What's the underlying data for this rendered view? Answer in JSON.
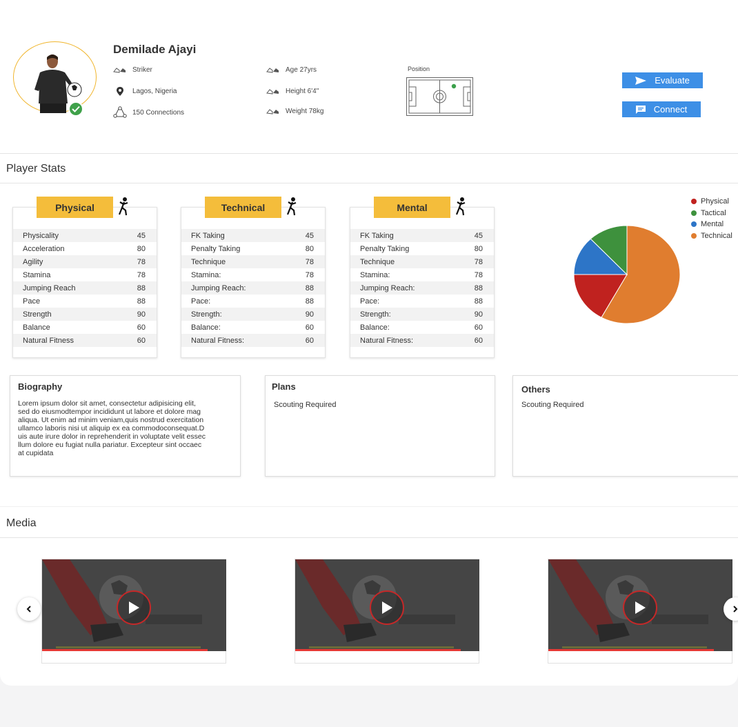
{
  "profile": {
    "name": "Demilade Ajayi",
    "role": "Striker",
    "location": "Lagos, Nigeria",
    "connections": "150 Connections",
    "age": "Age 27yrs",
    "height": "Height 6'4\"",
    "weight": "Weight 78kg",
    "position_label": "Position"
  },
  "actions": {
    "evaluate": "Evaluate",
    "connect": "Connect"
  },
  "player_stats": {
    "title": "Player Stats",
    "cards": [
      {
        "title": "Physical",
        "rows": [
          {
            "label": "Physicality",
            "value": "45"
          },
          {
            "label": "Acceleration",
            "value": "80"
          },
          {
            "label": "Agility",
            "value": "78"
          },
          {
            "label": "Stamina",
            "value": "78"
          },
          {
            "label": "Jumping Reach",
            "value": "88"
          },
          {
            "label": "Pace",
            "value": "88"
          },
          {
            "label": "Strength",
            "value": "90"
          },
          {
            "label": "Balance",
            "value": "60"
          },
          {
            "label": "Natural Fitness",
            "value": "60"
          }
        ]
      },
      {
        "title": "Technical",
        "rows": [
          {
            "label": "FK Taking",
            "value": "45"
          },
          {
            "label": "Penalty Taking",
            "value": "80"
          },
          {
            "label": "Technique",
            "value": "78"
          },
          {
            "label": "Stamina:",
            "value": "78"
          },
          {
            "label": "Jumping Reach:",
            "value": "88"
          },
          {
            "label": "Pace:",
            "value": "88"
          },
          {
            "label": "Strength:",
            "value": "90"
          },
          {
            "label": "Balance:",
            "value": "60"
          },
          {
            "label": "Natural Fitness:",
            "value": "60"
          }
        ]
      },
      {
        "title": "Mental",
        "rows": [
          {
            "label": "FK Taking",
            "value": "45"
          },
          {
            "label": "Penalty Taking",
            "value": "80"
          },
          {
            "label": "Technique",
            "value": "78"
          },
          {
            "label": "Stamina:",
            "value": "78"
          },
          {
            "label": "Jumping Reach:",
            "value": "88"
          },
          {
            "label": "Pace:",
            "value": "88"
          },
          {
            "label": "Strength:",
            "value": "90"
          },
          {
            "label": "Balance:",
            "value": "60"
          },
          {
            "label": "Natural Fitness:",
            "value": "60"
          }
        ]
      }
    ]
  },
  "chart_data": {
    "type": "pie",
    "series": [
      {
        "name": "Physical",
        "value": 17,
        "color": "#c0221f"
      },
      {
        "name": "Tactical",
        "value": 12,
        "color": "#3e913d"
      },
      {
        "name": "Mental",
        "value": 13,
        "color": "#2d75c7"
      },
      {
        "name": "Technical",
        "value": 58,
        "color": "#e07d2f"
      }
    ],
    "slice_order": [
      "Technical",
      "Physical",
      "Mental",
      "Tactical"
    ],
    "legend": "top-right"
  },
  "biography": {
    "title": "Biography",
    "lines": [
      "Lorem ipsum dolor sit amet, consectetur adipisicing elit,",
      "sed do eiusmodtempor incididunt ut labore et dolore mag",
      "aliqua. Ut enim ad minim veniam,quis nostrud exercitation",
      "ullamco laboris nisi ut aliquip ex ea commodoconsequat.D",
      "uis aute irure dolor in reprehenderit in voluptate velit essec",
      "llum dolore eu fugiat nulla pariatur. Excepteur sint occaec",
      "at cupidata"
    ]
  },
  "plans": {
    "title": "Plans",
    "text": "Scouting Required"
  },
  "others": {
    "title": "Others",
    "text": "Scouting Required"
  },
  "media": {
    "title": "Media",
    "count": 3,
    "progress": [
      0.9,
      0.9,
      0.9
    ]
  },
  "icons": {
    "role": "boots-icon",
    "location": "map-pin-icon",
    "connections": "network-icon",
    "age": "boots-icon",
    "height": "boots-icon",
    "weight": "boots-icon",
    "evaluate": "send-icon",
    "connect": "chat-icon",
    "play": "play-icon",
    "prev": "chevron-left-icon",
    "next": "chevron-right-icon"
  },
  "colors": {
    "accent": "#3d8fe6",
    "card_header": "#f4bd3b",
    "verified": "#3fa14a",
    "progress": "#e53935"
  }
}
